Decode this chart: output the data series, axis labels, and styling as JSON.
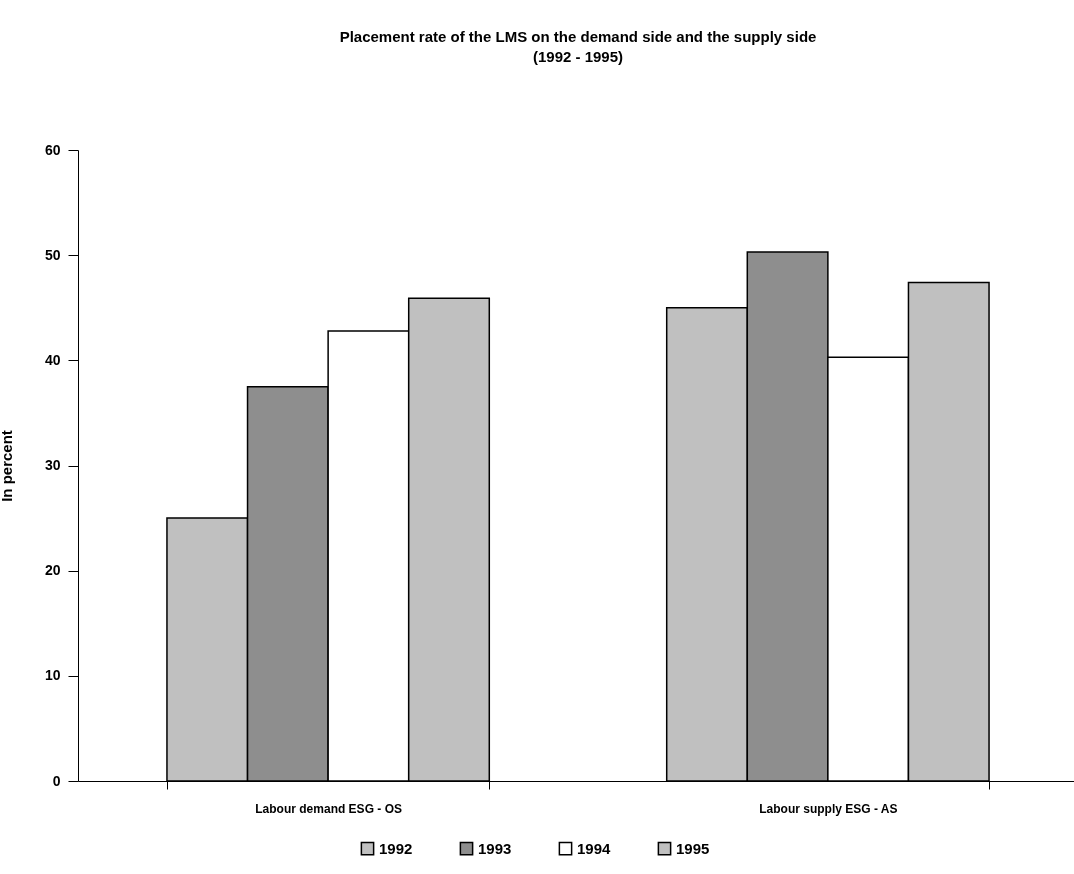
{
  "chart_data": {
    "type": "bar",
    "title": "Placement rate of the LMS on the demand side and the supply side\n(1992 - 1995)",
    "ylabel": "In percent",
    "categories": [
      "Labour demand ESG - OS",
      "Labour supply  ESG - AS"
    ],
    "series": [
      {
        "name": "1992",
        "color": "#c0c0c0",
        "values": [
          25,
          45
        ]
      },
      {
        "name": "1993",
        "color": "#8e8e8e",
        "values": [
          37.5,
          50.3
        ]
      },
      {
        "name": "1994",
        "color": "#ffffff",
        "values": [
          42.8,
          40.3
        ]
      },
      {
        "name": "1995",
        "color": "#c0c0c0",
        "values": [
          45.9,
          47.4
        ]
      }
    ],
    "ylim": [
      0,
      60
    ],
    "yticks": [
      0,
      10,
      20,
      30,
      40,
      50,
      60
    ],
    "grid": false,
    "legend": "bottom"
  }
}
